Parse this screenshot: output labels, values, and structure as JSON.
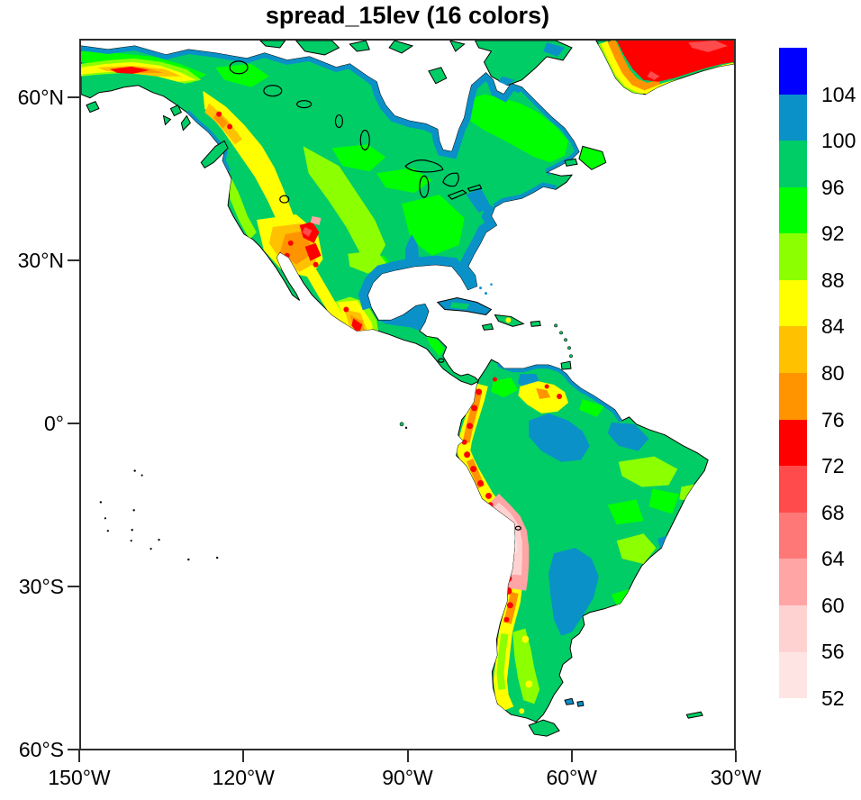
{
  "title": "spread_15lev (16 colors)",
  "axes": {
    "x": {
      "ticks": [
        "150°W",
        "120°W",
        "90°W",
        "60°W",
        "30°W"
      ]
    },
    "y": {
      "ticks": [
        "60°N",
        "30°N",
        "0°",
        "30°S",
        "60°S"
      ]
    }
  },
  "colorbar": {
    "boundary_labels": [
      "104",
      "100",
      "96",
      "92",
      "88",
      "84",
      "80",
      "76",
      "72",
      "68",
      "64",
      "60",
      "56",
      "52"
    ],
    "colors_top_to_bottom": [
      "#0000FF",
      "#0A91C8",
      "#00CD66",
      "#00FF00",
      "#8CFF00",
      "#FFFF00",
      "#FFC100",
      "#FF9400",
      "#FF0000",
      "#FF4B4B",
      "#FF7878",
      "#FFA5A5",
      "#FFD2D2",
      "#FFE4E4"
    ]
  },
  "palette": {
    "above_104": "#0000FF",
    "level_100_104": "#0A91C8",
    "level_96_100": "#00CD66",
    "level_92_96": "#00FF00",
    "level_88_92": "#8CFF00",
    "level_84_88": "#FFFF00",
    "level_80_84": "#FFC100",
    "level_76_80": "#FF9400",
    "level_72_76": "#FF0000",
    "level_68_72": "#FF4B4B",
    "level_64_68": "#FF7878",
    "level_60_64": "#FFA5A5",
    "level_56_60": "#FFD2D2",
    "level_52_56": "#FFE4E4",
    "coastline": "#000000",
    "axis": "#2E2E2E",
    "ocean": "#FFFFFF"
  },
  "chart_data": {
    "type": "heatmap",
    "title": "spread_15lev (16 colors)",
    "projection": "cylindrical equidistant over the Americas",
    "lon_range_deg": [
      -150,
      -30
    ],
    "lat_range_deg": [
      -61,
      71
    ],
    "x_tick_labels": [
      "150°W",
      "120°W",
      "90°W",
      "60°W",
      "30°W"
    ],
    "y_tick_labels": [
      "60°N",
      "30°N",
      "0°",
      "30°S",
      "60°S"
    ],
    "levels": [
      52,
      56,
      60,
      64,
      68,
      72,
      76,
      80,
      84,
      88,
      92,
      96,
      100,
      104
    ],
    "level_colors_low_to_high": [
      "#FFE4E4",
      "#FFD2D2",
      "#FFA5A5",
      "#FF7878",
      "#FF4B4B",
      "#FF0000",
      "#FF9400",
      "#FFC100",
      "#FFFF00",
      "#8CFF00",
      "#00FF00",
      "#00CD66",
      "#0A91C8",
      "#0000FF"
    ],
    "legend_position": "right",
    "grid": false,
    "notable_features": [
      {
        "region": "Boreal Canada, Quebec-Labrador, most lowland Americas",
        "approx_value_range": [
          92,
          100
        ]
      },
      {
        "region": "Hudson Bay coasts, Arctic coast, US Atlantic & Gulf coastal plain, Florida, Yucatan, Cuba",
        "approx_value_range": [
          100,
          104
        ]
      },
      {
        "region": "Amazon basin and Parana basin interior patches",
        "approx_value_range": [
          100,
          104
        ]
      },
      {
        "region": "Rocky Mountains, Great Basin, Colorado Plateau",
        "approx_value_range": [
          72,
          84
        ]
      },
      {
        "region": "Sierra Madre, Mexico",
        "approx_value_range": [
          72,
          84
        ]
      },
      {
        "region": "Alaska Range and British Columbia coast ranges",
        "approx_value_range": [
          72,
          84
        ]
      },
      {
        "region": "Greenland interior (red core, large)",
        "approx_value_range": [
          68,
          80
        ]
      },
      {
        "region": "Northern Andes (Colombia/Ecuador)",
        "approx_value_range": [
          72,
          88
        ]
      },
      {
        "region": "Central Andes Altiplano (pale pink minimum)",
        "approx_value_range": [
          52,
          64
        ]
      },
      {
        "region": "Southern Andes and Patagonia",
        "approx_value_range": [
          84,
          92
        ]
      },
      {
        "region": "Guiana highlands (Venezuela) yellow-orange patch",
        "approx_value_range": [
          76,
          88
        ]
      }
    ]
  }
}
